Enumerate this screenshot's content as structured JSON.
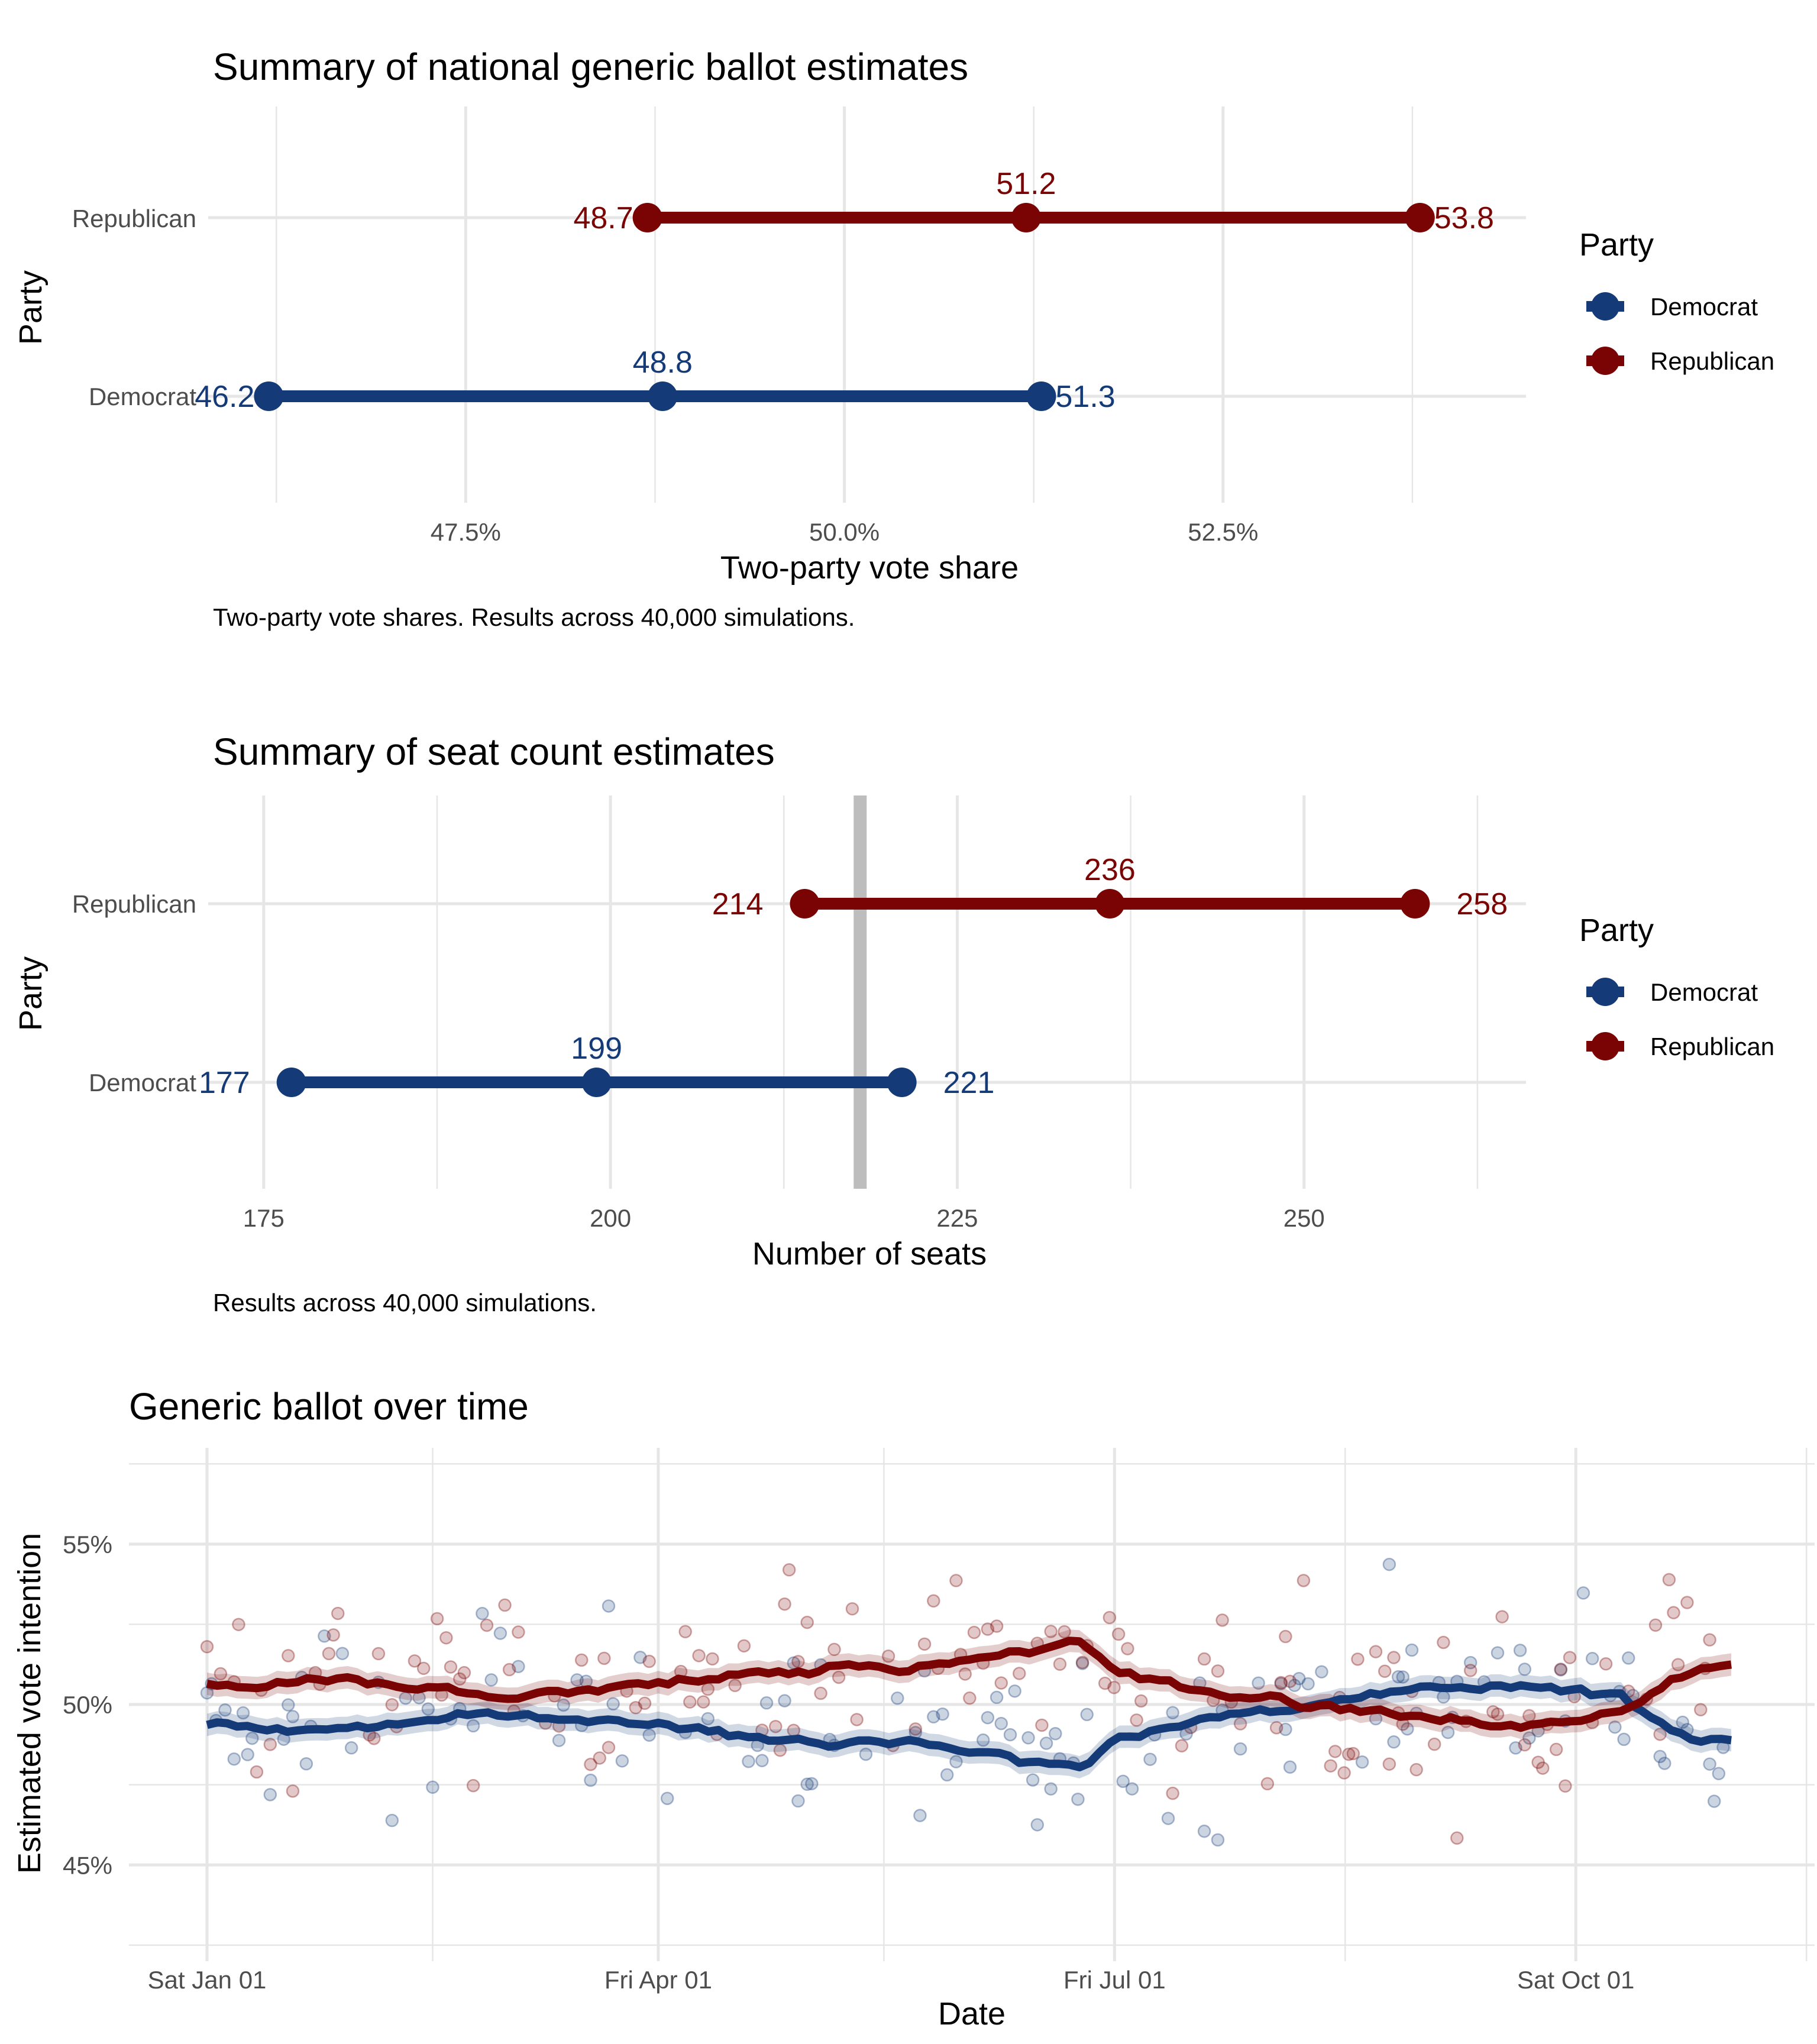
{
  "chart_data": [
    {
      "type": "range",
      "title": "Summary of national generic ballot estimates",
      "xlabel": "Two-party vote share",
      "ylabel": "Party",
      "caption": "Two-party vote shares. Results across 40,000 simulations.",
      "xlim": [
        45.8,
        54.5
      ],
      "xticks": [
        47.5,
        50.0,
        52.5
      ],
      "xtick_labels": [
        "47.5%",
        "50.0%",
        "52.5%"
      ],
      "categories": [
        "Democrat",
        "Republican"
      ],
      "series": [
        {
          "name": "Democrat",
          "color": "#143a78",
          "low": 46.2,
          "mid": 48.8,
          "high": 51.3,
          "labels": [
            "46.2",
            "48.8",
            "51.3"
          ]
        },
        {
          "name": "Republican",
          "color": "#7a0404",
          "low": 48.7,
          "mid": 51.2,
          "high": 53.8,
          "labels": [
            "48.7",
            "51.2",
            "53.8"
          ]
        }
      ],
      "legend": {
        "title": "Party",
        "items": [
          "Democrat",
          "Republican"
        ]
      }
    },
    {
      "type": "range",
      "title": "Summary of seat count estimates",
      "xlabel": "Number of seats",
      "ylabel": "Party",
      "caption": "Results across 40,000 simulations.",
      "xlim": [
        171,
        266
      ],
      "xticks": [
        175,
        200,
        225,
        250
      ],
      "xtick_labels": [
        "175",
        "200",
        "225",
        "250"
      ],
      "reference_line": 218,
      "categories": [
        "Democrat",
        "Republican"
      ],
      "series": [
        {
          "name": "Democrat",
          "color": "#143a78",
          "low": 177,
          "mid": 199,
          "high": 221,
          "labels": [
            "177",
            "199",
            "221"
          ]
        },
        {
          "name": "Republican",
          "color": "#7a0404",
          "low": 214,
          "mid": 236,
          "high": 258,
          "labels": [
            "214",
            "236",
            "258"
          ]
        }
      ],
      "legend": {
        "title": "Party",
        "items": [
          "Democrat",
          "Republican"
        ]
      }
    },
    {
      "type": "line",
      "title": "Generic ballot over time",
      "xlabel": "Date",
      "ylabel": "Estimated vote intention",
      "xtick_labels": [
        "Sat Jan 01",
        "Fri Apr 01",
        "Fri Jul 01",
        "Sat Oct 01"
      ],
      "ylim": [
        42,
        58
      ],
      "yticks": [
        45,
        50,
        55
      ],
      "ytick_labels": [
        "45%",
        "50%",
        "55%"
      ],
      "grid": true,
      "series": [
        {
          "name": "Democrat",
          "color": "#143a78",
          "x": [
            "2022-01-01",
            "2022-01-20",
            "2022-02-10",
            "2022-03-01",
            "2022-03-20",
            "2022-04-10",
            "2022-05-01",
            "2022-05-20",
            "2022-06-10",
            "2022-06-25",
            "2022-07-01",
            "2022-07-20",
            "2022-08-10",
            "2022-09-01",
            "2022-09-20",
            "2022-10-10",
            "2022-10-20",
            "2022-11-01"
          ],
          "values": [
            49.4,
            49.2,
            49.4,
            49.7,
            49.5,
            49.2,
            48.9,
            48.9,
            48.4,
            48.0,
            49.0,
            49.6,
            50.0,
            50.4,
            50.7,
            50.2,
            49.2,
            48.8
          ]
        },
        {
          "name": "Republican",
          "color": "#7a0404",
          "x": [
            "2022-01-01",
            "2022-01-20",
            "2022-02-10",
            "2022-03-01",
            "2022-03-20",
            "2022-04-10",
            "2022-05-01",
            "2022-05-20",
            "2022-06-10",
            "2022-06-25",
            "2022-07-01",
            "2022-07-20",
            "2022-08-10",
            "2022-09-01",
            "2022-09-20",
            "2022-10-10",
            "2022-10-20",
            "2022-11-01"
          ],
          "values": [
            50.6,
            50.8,
            50.6,
            50.3,
            50.5,
            50.8,
            51.1,
            51.1,
            51.6,
            52.0,
            51.0,
            50.4,
            50.0,
            49.6,
            49.3,
            49.8,
            50.8,
            51.2
          ]
        }
      ]
    }
  ]
}
